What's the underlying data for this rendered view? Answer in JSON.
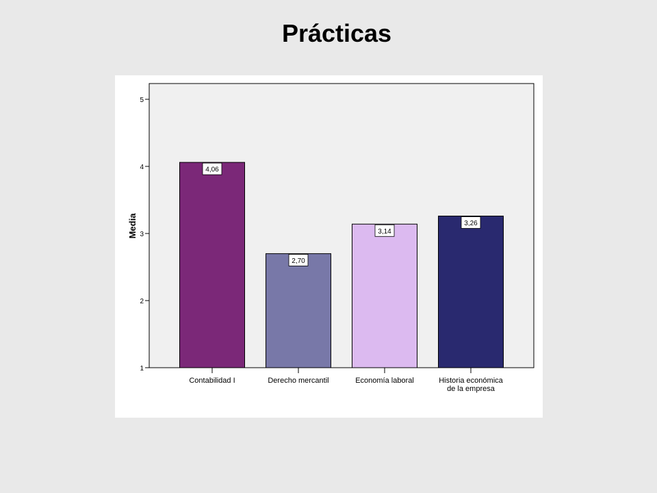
{
  "slide": {
    "title": "Prácticas"
  },
  "chart_data": {
    "type": "bar",
    "title": "",
    "xlabel": "",
    "ylabel": "Media",
    "ylim": [
      1,
      5
    ],
    "yticks": [
      1,
      2,
      3,
      4,
      5
    ],
    "categories": [
      [
        "Contabilidad I"
      ],
      [
        "Derecho mercantil"
      ],
      [
        "Economía laboral"
      ],
      [
        "Historia económica",
        "de la empresa"
      ]
    ],
    "values": [
      4.06,
      2.7,
      3.14,
      3.26
    ],
    "data_labels": [
      "4,06",
      "2,70",
      "3,14",
      "3,26"
    ],
    "colors": [
      "#7b2878",
      "#7878a8",
      "#dcbaf0",
      "#29296f"
    ],
    "plot_background": "#f0f0f0",
    "grid": false,
    "legend": "none"
  }
}
